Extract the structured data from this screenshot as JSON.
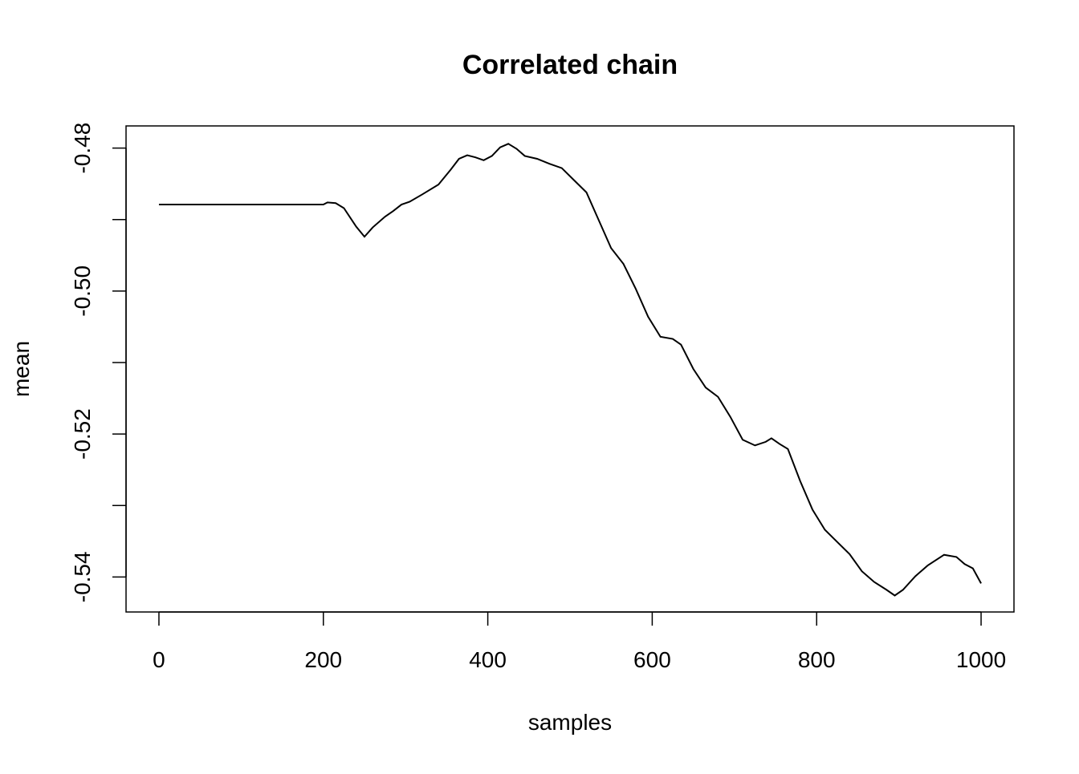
{
  "chart_data": {
    "type": "line",
    "title": "Correlated chain",
    "x_label": "samples",
    "y_label": "mean",
    "x": [
      0,
      200,
      205,
      215,
      225,
      240,
      250,
      260,
      275,
      285,
      295,
      305,
      320,
      340,
      355,
      365,
      375,
      385,
      395,
      405,
      415,
      425,
      435,
      445,
      460,
      475,
      490,
      505,
      520,
      535,
      550,
      565,
      580,
      595,
      610,
      625,
      635,
      650,
      665,
      680,
      695,
      710,
      725,
      738,
      745,
      755,
      765,
      780,
      795,
      810,
      825,
      840,
      855,
      870,
      885,
      895,
      905,
      920,
      935,
      955,
      970,
      980,
      990,
      1000
    ],
    "series": [
      {
        "color": "#000000",
        "values": [
          -0.4879,
          -0.4879,
          -0.4876,
          -0.4877,
          -0.4884,
          -0.491,
          -0.4924,
          -0.4911,
          -0.4896,
          -0.4888,
          -0.4879,
          -0.4875,
          -0.4865,
          -0.4851,
          -0.483,
          -0.4815,
          -0.481,
          -0.4813,
          -0.4817,
          -0.4811,
          -0.4799,
          -0.4794,
          -0.4801,
          -0.4811,
          -0.4815,
          -0.4822,
          -0.4828,
          -0.4845,
          -0.4862,
          -0.4901,
          -0.494,
          -0.4962,
          -0.4997,
          -0.5036,
          -0.5064,
          -0.5067,
          -0.5075,
          -0.5109,
          -0.5135,
          -0.5148,
          -0.5176,
          -0.5208,
          -0.5216,
          -0.5211,
          -0.5206,
          -0.5214,
          -0.5221,
          -0.5266,
          -0.5306,
          -0.5334,
          -0.5351,
          -0.5368,
          -0.5392,
          -0.5407,
          -0.5418,
          -0.5426,
          -0.5418,
          -0.5399,
          -0.5384,
          -0.5369,
          -0.5372,
          -0.5382,
          -0.5388,
          -0.5409
        ]
      }
    ],
    "xlim": [
      -40,
      1040
    ],
    "xticks": [
      0,
      200,
      400,
      600,
      800,
      1000
    ],
    "ylim": [
      -0.5449,
      -0.4769
    ],
    "yticks": [
      -0.48,
      {
        "value": -0.5,
        "label": "-0.50"
      },
      -0.52,
      -0.54
    ],
    "yminor_ticks": [
      -0.49,
      -0.51,
      -0.53
    ]
  }
}
